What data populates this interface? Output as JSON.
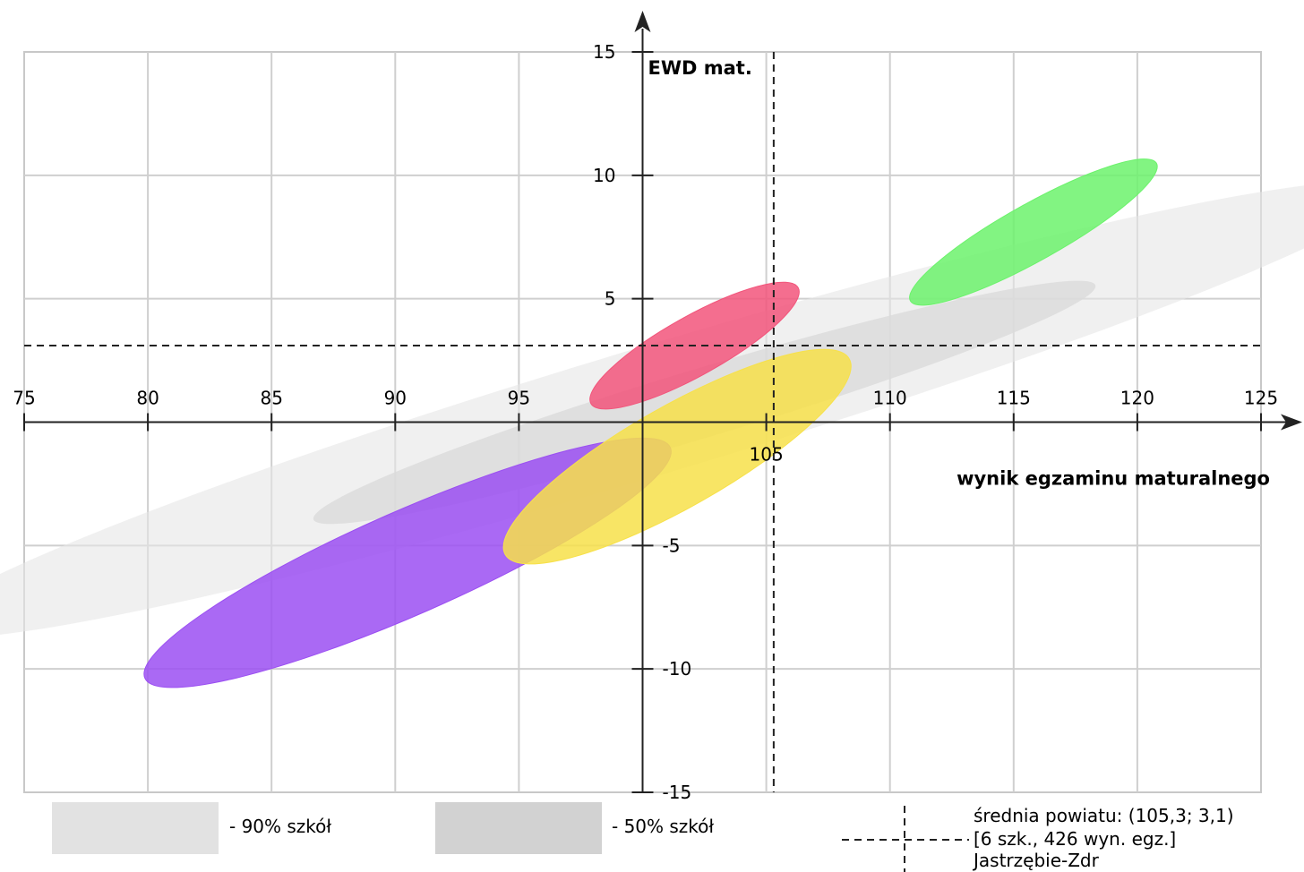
{
  "chart_data": {
    "type": "scatter",
    "title": "",
    "xlabel": "wynik egzaminu maturalnego",
    "ylabel": "EWD mat.",
    "xlim": [
      75,
      125
    ],
    "ylim": [
      -15,
      15
    ],
    "x_ticks": [
      75,
      80,
      85,
      90,
      95,
      105,
      110,
      115,
      120,
      125
    ],
    "y_ticks": [
      15,
      10,
      5,
      -5,
      -10,
      -15
    ],
    "grid": true,
    "reference_lines": {
      "x": 105.3,
      "y": 3.1
    },
    "regions": [
      {
        "name": "90% szkół",
        "color": "#e6e6e6",
        "cx": 100.5,
        "cy": 0.5,
        "rx": 31,
        "ry": 2.6,
        "angle": 0.3
      },
      {
        "name": "50% szkół",
        "color": "#d9d9d9",
        "cx": 102.5,
        "cy": 0.8,
        "rx": 16.5,
        "ry": 1.4,
        "angle": 0.3
      }
    ],
    "schools": [
      {
        "color": "#9b4ff2",
        "cx": 90.5,
        "cy": -5.7,
        "rx": 11.6,
        "ry": 2.1,
        "angle": 0.44
      },
      {
        "color": "#f2557b",
        "cx": 102.1,
        "cy": 3.1,
        "rx": 4.8,
        "ry": 1.2,
        "angle": 0.56
      },
      {
        "color": "#f7e14a",
        "cx": 101.4,
        "cy": -1.4,
        "rx": 8.0,
        "ry": 2.05,
        "angle": 0.57
      },
      {
        "color": "#6cf26c",
        "cx": 115.8,
        "cy": 7.7,
        "rx": 5.7,
        "ry": 1.15,
        "angle": 0.56
      }
    ]
  },
  "legend": {
    "items": [
      {
        "label": "- 90% szkół",
        "color": "#e2e2e2"
      },
      {
        "label": "- 50% szkół",
        "color": "#d2d2d2"
      }
    ],
    "average": {
      "line1": "średnia powiatu: (105,3; 3,1)",
      "line2": "[6 szk., 426 wyn. egz.]",
      "line3": "Jastrzębie-Zdr"
    }
  }
}
